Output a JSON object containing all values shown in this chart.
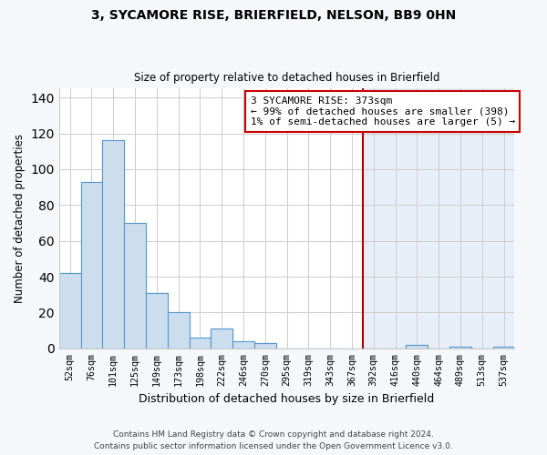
{
  "title1": "3, SYCAMORE RISE, BRIERFIELD, NELSON, BB9 0HN",
  "title2": "Size of property relative to detached houses in Brierfield",
  "xlabel": "Distribution of detached houses by size in Brierfield",
  "ylabel": "Number of detached properties",
  "bar_labels": [
    "52sqm",
    "76sqm",
    "101sqm",
    "125sqm",
    "149sqm",
    "173sqm",
    "198sqm",
    "222sqm",
    "246sqm",
    "270sqm",
    "295sqm",
    "319sqm",
    "343sqm",
    "367sqm",
    "392sqm",
    "416sqm",
    "440sqm",
    "464sqm",
    "489sqm",
    "513sqm",
    "537sqm"
  ],
  "bar_heights": [
    42,
    93,
    116,
    70,
    31,
    20,
    6,
    11,
    4,
    3,
    0,
    0,
    0,
    0,
    0,
    0,
    2,
    0,
    1,
    0,
    1
  ],
  "bar_color": "#ccdded",
  "bar_edge_color": "#5599cc",
  "vline_x": 13.5,
  "vline_color": "#aa0000",
  "annotation_title": "3 SYCAMORE RISE: 373sqm",
  "annotation_line1": "← 99% of detached houses are smaller (398)",
  "annotation_line2": "1% of semi-detached houses are larger (5) →",
  "annotation_box_color": "#ffffff",
  "annotation_box_edge": "#cc0000",
  "right_bg_color": "#e8eef8",
  "plot_bg_color": "#ffffff",
  "fig_bg_color": "#f5f7fa",
  "ylim": [
    0,
    145
  ],
  "yticks": [
    0,
    20,
    40,
    60,
    80,
    100,
    120,
    140
  ],
  "footnote1": "Contains HM Land Registry data © Crown copyright and database right 2024.",
  "footnote2": "Contains public sector information licensed under the Open Government Licence v3.0.",
  "grid_color": "#cccccc"
}
